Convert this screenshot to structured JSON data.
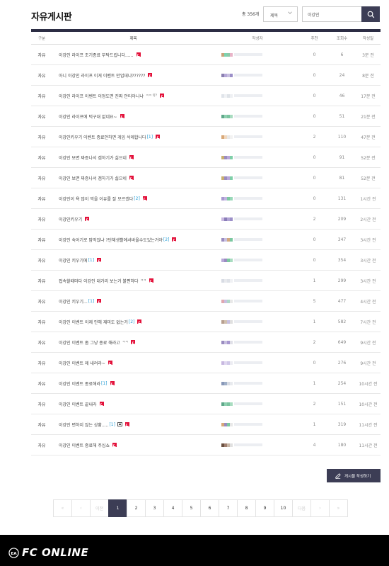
{
  "header": {
    "title": "자유게시판",
    "total": "총 356개",
    "select_value": "제목",
    "search_value": "이강인"
  },
  "columns": {
    "category": "구분",
    "title": "제목",
    "author": "작성자",
    "recommend": "추천",
    "views": "조회수",
    "date": "작성일"
  },
  "rows": [
    {
      "category": "자유",
      "title": "이강인 라이프 조기종료 부탁드립니다......",
      "comments": "",
      "tag": "",
      "image": false,
      "recommend": "0",
      "views": "6",
      "date": "3분 전",
      "colors": [
        "#c9a27a",
        "#7bd4b0",
        "#8bc9a8",
        "#e8b4c8"
      ]
    },
    {
      "category": "자유",
      "title": "아니 이강인 라이프 이게 이벤트 만업데냐??????",
      "comments": "",
      "tag": "",
      "image": false,
      "recommend": "0",
      "views": "24",
      "date": "8분 전",
      "colors": [
        "#8a7fb0",
        "#b6a8d8",
        "#c8c0e0",
        "#9b8fc8"
      ]
    },
    {
      "category": "자유",
      "title": "이강인 라이프 이벤트 이정도면 진짜 안티아니냐",
      "comments": "",
      "tag": "ㅋㅋ 약?",
      "image": false,
      "recommend": "0",
      "views": "46",
      "date": "17분 전",
      "colors": [
        "#e0e4ea",
        "#f0f2f5",
        "#dfe3e8",
        "#eef0f3"
      ]
    },
    {
      "category": "자유",
      "title": "이강인 라이프에 턱구대 없네요~",
      "comments": "",
      "tag": "",
      "image": false,
      "recommend": "0",
      "views": "51",
      "date": "21분 전",
      "colors": [
        "#5fa88a",
        "#8fd0b0",
        "#7cc4a0",
        "#a8dcc0"
      ]
    },
    {
      "category": "자유",
      "title": "이강인키우기 이벤트 종료안하면 게임 삭제합니다",
      "comments": "[1]",
      "tag": "",
      "image": false,
      "recommend": "2",
      "views": "110",
      "date": "47분 전",
      "colors": [
        "#d8a878",
        "#f0d8c0",
        "#e8e8e8",
        "#f2f2f2"
      ]
    },
    {
      "category": "자유",
      "title": "이강인 보면 짜증나서 겜하기가 싫으네",
      "comments": "",
      "tag": "",
      "image": false,
      "recommend": "0",
      "views": "91",
      "date": "52분 전",
      "colors": [
        "#c8b070",
        "#9a8cc0",
        "#b8a8d8",
        "#7fcfa8"
      ]
    },
    {
      "category": "자유",
      "title": "이강인 보면 짜증나서 겜하기가 싫으네",
      "comments": "",
      "tag": "",
      "image": false,
      "recommend": "0",
      "views": "81",
      "date": "52분 전",
      "colors": [
        "#c8b070",
        "#9a8cc0",
        "#b8a8d8",
        "#7fcfa8"
      ]
    },
    {
      "category": "자유",
      "title": "이강인이 욕 많이 먹을 이유를 잘 모르겠다",
      "comments": "[2]",
      "tag": "",
      "image": false,
      "recommend": "0",
      "views": "131",
      "date": "1시간 전",
      "colors": [
        "#a898d0",
        "#c0b4e0",
        "#7cc8a0",
        "#98d8b8"
      ]
    },
    {
      "category": "자유",
      "title": "이강인키우기",
      "comments": "",
      "tag": "",
      "image": false,
      "recommend": "2",
      "views": "209",
      "date": "2시간 전",
      "colors": [
        "#c8b8e0",
        "#8a7cb8",
        "#b0a4d4",
        "#9c90c8"
      ]
    },
    {
      "category": "자유",
      "title": "이강인 숙어기로 맘먹었냐 ?단체생활에서바울수도있는거야",
      "comments": "[2]",
      "tag": "",
      "image": false,
      "recommend": "0",
      "views": "347",
      "date": "3시간 전",
      "colors": [
        "#9a8cc0",
        "#c8c0e0",
        "#d0a880",
        "#7cc8a0"
      ]
    },
    {
      "category": "자유",
      "title": "이강인 키우기에",
      "comments": "[1]",
      "tag": "",
      "image": false,
      "recommend": "0",
      "views": "354",
      "date": "3시간 전",
      "colors": [
        "#b8a8d8",
        "#9a8cc0",
        "#7cc8a0",
        "#a8dcc0"
      ]
    },
    {
      "category": "자유",
      "title": "접속할때마다 이강인 대가리 보는거 불편하다",
      "comments": "",
      "tag": "ㅋㅋ",
      "image": false,
      "recommend": "1",
      "views": "299",
      "date": "3시간 전",
      "colors": [
        "#d8dce4",
        "#e8eaee",
        "#dfe2e8",
        "#f0f1f4"
      ]
    },
    {
      "category": "자유",
      "title": "이강인 키우기...",
      "comments": "[1]",
      "tag": "",
      "image": false,
      "recommend": "5",
      "views": "477",
      "date": "4시간 전",
      "colors": [
        "#e0a8b0",
        "#c8c0e0",
        "#b0d8c8",
        "#e8e8e8"
      ]
    },
    {
      "category": "자유",
      "title": "이강인 이벤트 이제 안해 재미도 없는거",
      "comments": "[2]",
      "tag": "",
      "image": false,
      "recommend": "1",
      "views": "582",
      "date": "7시간 전",
      "colors": [
        "#b8a090",
        "#d0c0b0",
        "#c8c0e0",
        "#e0e0e0"
      ]
    },
    {
      "category": "자유",
      "title": "이강인 이벤트 좀 그냥 종료 해라고",
      "comments": "",
      "tag": "ㅋㅋ",
      "image": false,
      "recommend": "2",
      "views": "649",
      "date": "9시간 전",
      "colors": [
        "#9a8cc0",
        "#c8c0e0",
        "#a898d0",
        "#e0e0e8"
      ]
    },
    {
      "category": "자유",
      "title": "이강인 이벤트 제 내려라~",
      "comments": "",
      "tag": "",
      "image": false,
      "recommend": "0",
      "views": "276",
      "date": "9시간 전",
      "colors": [
        "#c8b8e0",
        "#e0d8f0",
        "#d0c8e8",
        "#ececf2"
      ]
    },
    {
      "category": "자유",
      "title": "이강인 이벤트 종료해라",
      "comments": "[1]",
      "tag": "",
      "image": false,
      "recommend": "1",
      "views": "254",
      "date": "10시간 전",
      "colors": [
        "#8898b8",
        "#a0b0c8",
        "#d8dce4",
        "#e8eaee"
      ]
    },
    {
      "category": "자유",
      "title": "이강인 이벤트 끝내라",
      "comments": "",
      "tag": "",
      "image": false,
      "recommend": "2",
      "views": "151",
      "date": "10시간 전",
      "colors": [
        "#5fa88a",
        "#8fd0b0",
        "#7cc4a0",
        "#a8dcc0"
      ]
    },
    {
      "category": "자유",
      "title": "이강인 변하지 않는 상황.....",
      "comments": "[1]",
      "tag": "",
      "image": true,
      "recommend": "1",
      "views": "319",
      "date": "11시간 전",
      "colors": [
        "#d8a878",
        "#9a8cc0",
        "#7cc8a0",
        "#e8e8e8"
      ]
    },
    {
      "category": "자유",
      "title": "이강인 이벤트 종료해 주십쇼",
      "comments": "",
      "tag": "",
      "image": false,
      "recommend": "4",
      "views": "180",
      "date": "11시간 전",
      "colors": [
        "#6a5040",
        "#a08070",
        "#c8b8a8",
        "#e0e0e0"
      ]
    }
  ],
  "write_button": "게시물 작성하기",
  "pagination": {
    "first": "«",
    "prev": "‹",
    "prev_label": "이전",
    "pages": [
      "1",
      "2",
      "3",
      "4",
      "5",
      "6",
      "7",
      "8",
      "9",
      "10"
    ],
    "current": "1",
    "next_label": "다음",
    "next": "›",
    "last": "»"
  },
  "footer": {
    "logo_badge": "EA",
    "logo_text": "FC ONLINE"
  }
}
